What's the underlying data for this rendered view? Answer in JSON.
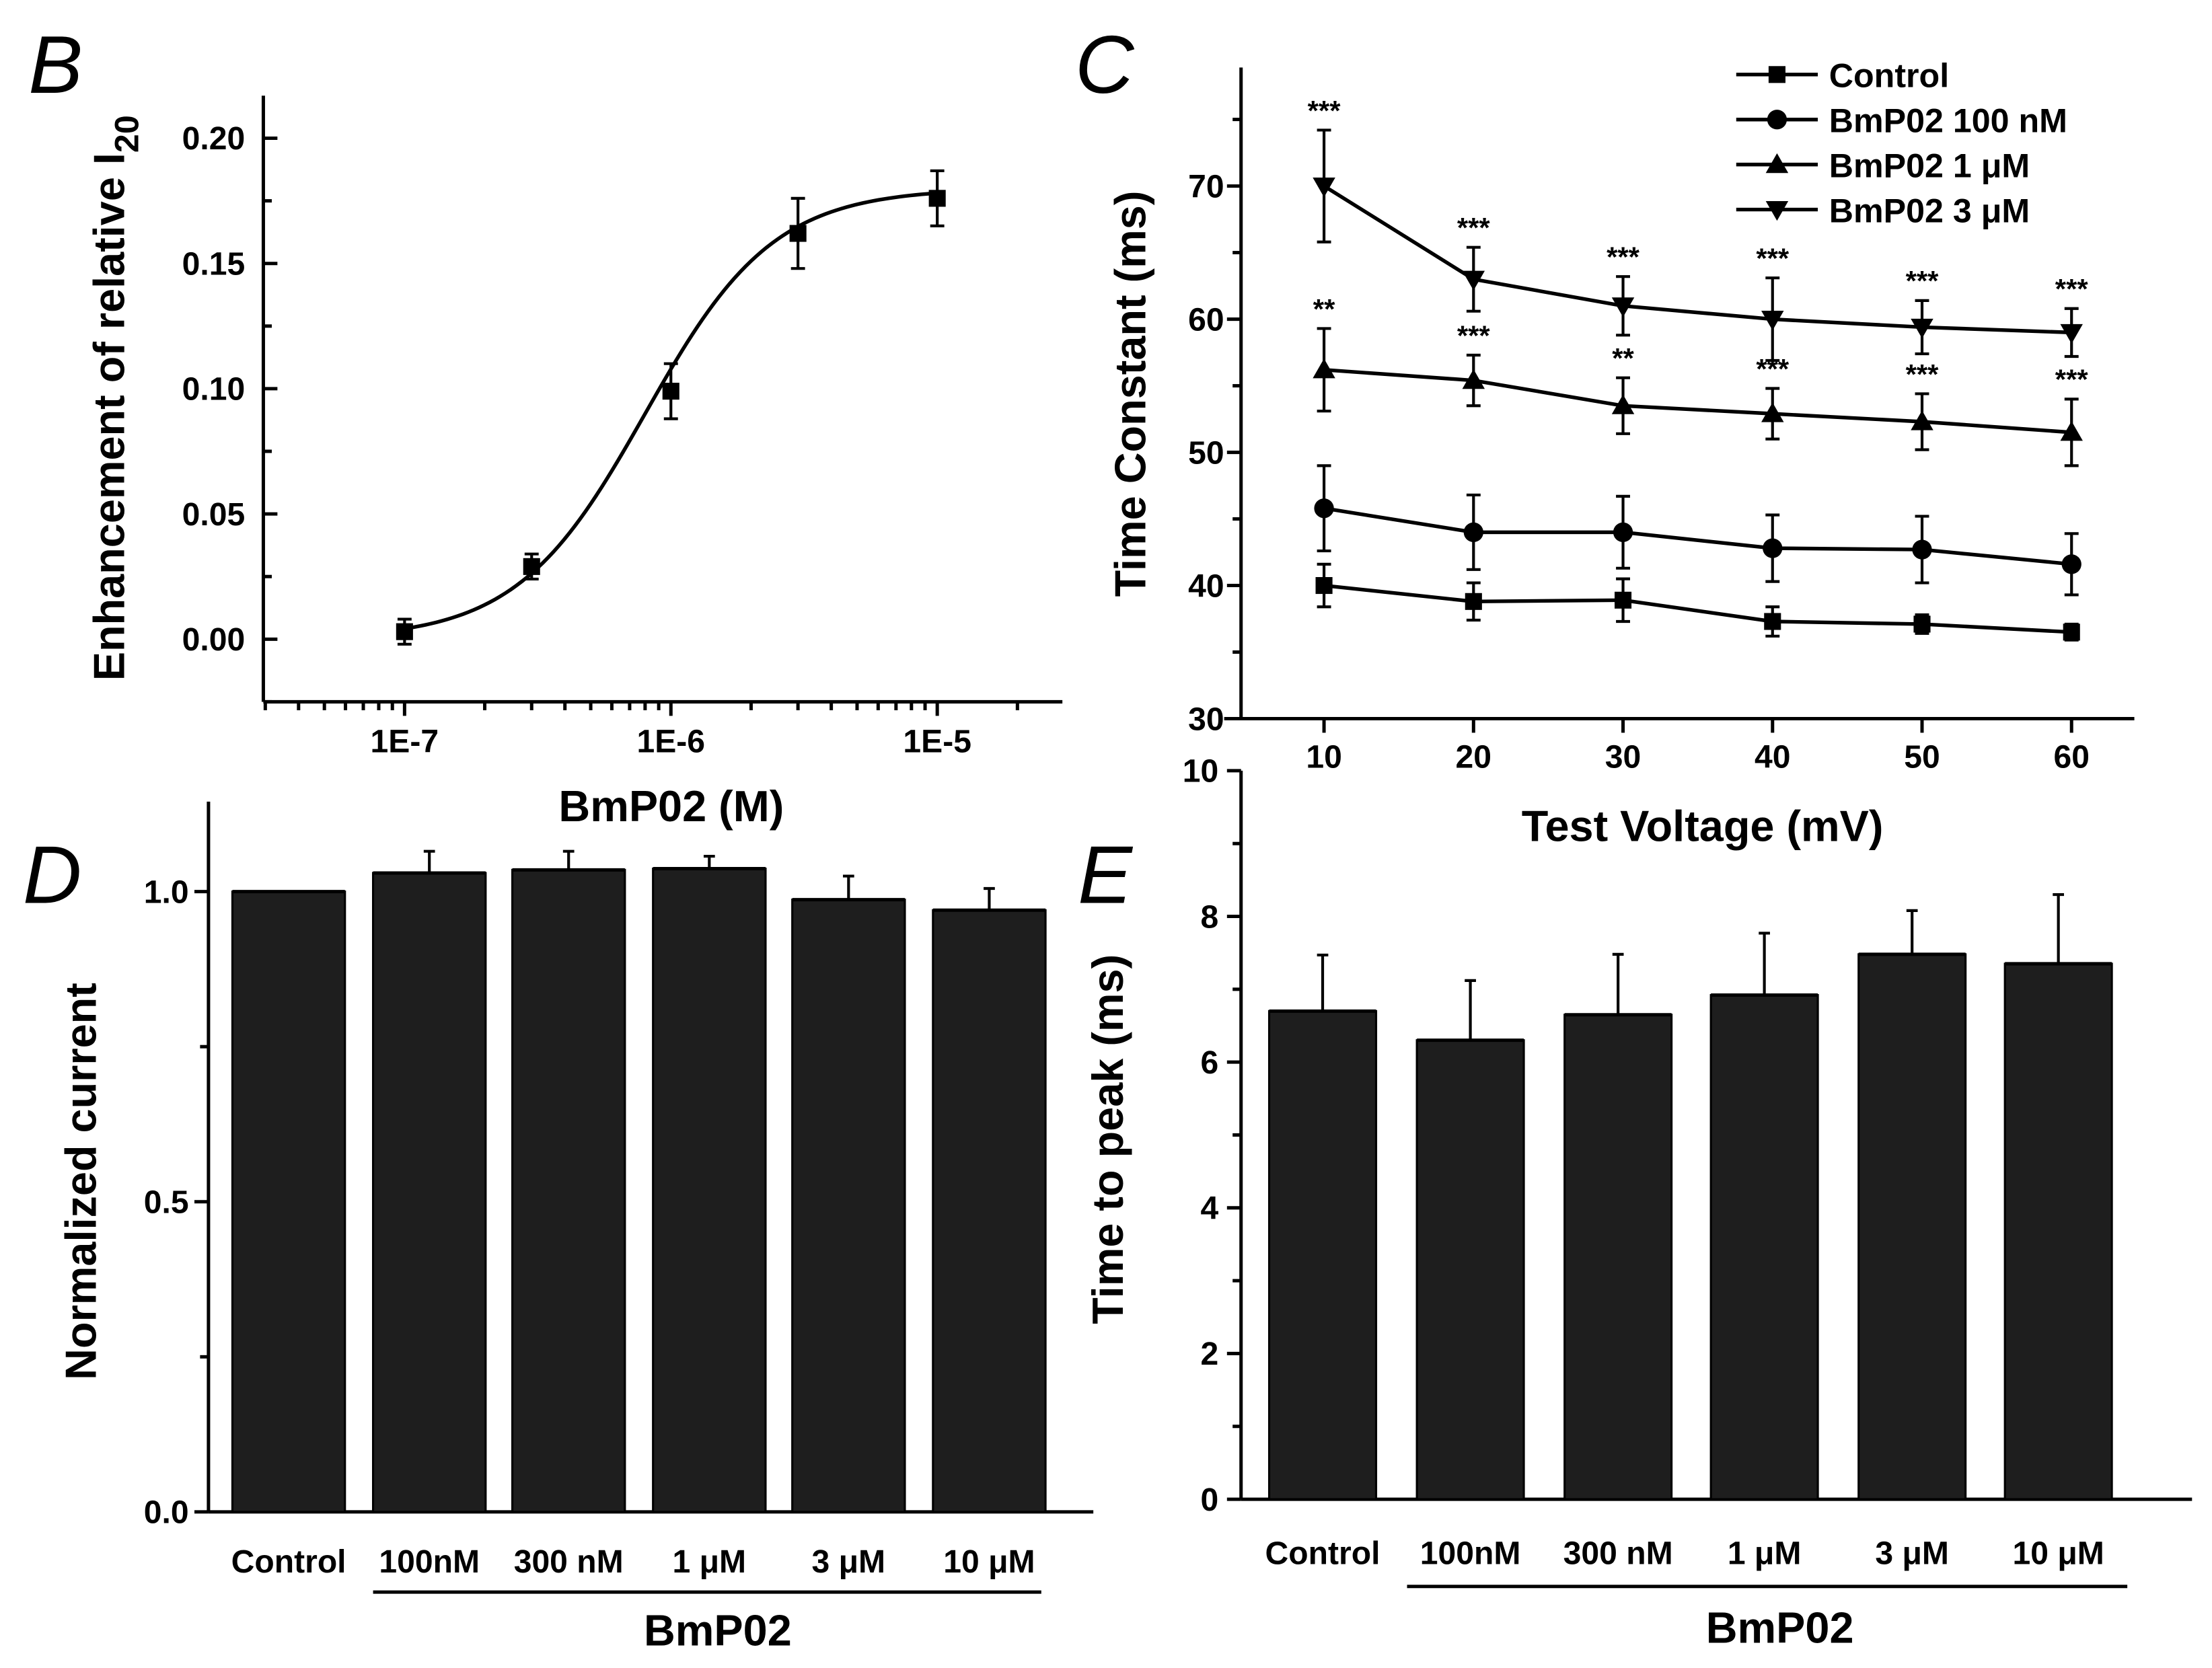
{
  "chart_data": [
    {
      "panel": "B",
      "type": "scatter",
      "title": "",
      "xlabel": "BmP02 (M)",
      "ylabel": "Enhancement of relative I",
      "ylabel_sub": "20",
      "xscale": "log",
      "xlim": [
        2.95e-08,
        2.95e-05
      ],
      "ylim": [
        -0.025,
        0.217
      ],
      "xticks": [
        1e-07,
        1e-06,
        1e-05
      ],
      "xtick_labels": [
        "1E-7",
        "1E-6",
        "1E-5"
      ],
      "yticks": [
        0,
        0.05,
        0.1,
        0.15,
        0.2
      ],
      "ytick_labels": [
        "0.00",
        "0.05",
        "0.10",
        "0.15",
        "0.20"
      ],
      "x": [
        1e-07,
        3e-07,
        1e-06,
        3e-06,
        1e-05
      ],
      "y": [
        0.003,
        0.029,
        0.099,
        0.162,
        0.176
      ],
      "err": [
        0.005,
        0.005,
        0.011,
        0.014,
        0.011
      ],
      "fit": {
        "model": "hill",
        "top": 0.18,
        "ec50": 8e-07,
        "n": 1.8
      }
    },
    {
      "panel": "C",
      "type": "line",
      "xlabel": "Test Voltage (mV)",
      "ylabel": "Time Constant (ms)",
      "xlim": [
        4.45,
        64.2
      ],
      "ylim": [
        30,
        78.9
      ],
      "x": [
        10,
        20,
        30,
        40,
        50,
        60
      ],
      "xtick_labels": [
        "10",
        "20",
        "30",
        "40",
        "50",
        "60"
      ],
      "yticks": [
        30,
        40,
        50,
        60,
        70
      ],
      "ytick_labels": [
        "30",
        "40",
        "50",
        "60",
        "70"
      ],
      "legend": "top-right",
      "series": [
        {
          "name": "Control",
          "marker": "square",
          "values": [
            40.0,
            38.8,
            38.9,
            37.3,
            37.1,
            36.5
          ],
          "err": [
            1.6,
            1.4,
            1.6,
            1.1,
            0.7,
            0.6
          ],
          "annotations": []
        },
        {
          "name": "BmP02 100 nM",
          "marker": "circle",
          "values": [
            45.8,
            44.0,
            44.0,
            42.8,
            42.7,
            41.6
          ],
          "err": [
            3.2,
            2.8,
            2.7,
            2.5,
            2.5,
            2.3
          ],
          "annotations": []
        },
        {
          "name": "BmP02 1 μM",
          "marker": "triangle-up",
          "values": [
            56.2,
            55.4,
            53.5,
            52.9,
            52.3,
            51.5
          ],
          "err": [
            3.1,
            1.9,
            2.1,
            1.9,
            2.1,
            2.5
          ],
          "annotations": [
            "**",
            "***",
            "**",
            "***",
            "***",
            "***"
          ]
        },
        {
          "name": "BmP02 3 μM",
          "marker": "triangle-down",
          "values": [
            70.0,
            63.0,
            61.0,
            60.0,
            59.4,
            59.0
          ],
          "err": [
            4.2,
            2.4,
            2.2,
            3.1,
            2.0,
            1.8
          ],
          "annotations": [
            "***",
            "***",
            "***",
            "***",
            "***",
            "***"
          ]
        }
      ]
    },
    {
      "panel": "D",
      "type": "bar",
      "xlabel": "",
      "ylabel": "Normalized current",
      "group_label": "BmP02",
      "categories": [
        "Control",
        "100nM",
        "300 nM",
        "1 μM",
        "3 μM",
        "10 μM"
      ],
      "values": [
        1.0,
        1.03,
        1.035,
        1.037,
        0.987,
        0.97
      ],
      "err": [
        0,
        0.035,
        0.03,
        0.02,
        0.038,
        0.035
      ],
      "ylim": [
        0,
        1.145
      ],
      "yticks": [
        0,
        0.5,
        1.0
      ],
      "ytick_labels": [
        "0.0",
        "0.5",
        "1.0"
      ]
    },
    {
      "panel": "E",
      "type": "bar",
      "xlabel": "",
      "ylabel": "Time to peak (ms)",
      "group_label": "BmP02",
      "categories": [
        "Control",
        "100nM",
        "300 nM",
        "1 μM",
        "3 μM",
        "10 μM"
      ],
      "values": [
        6.7,
        6.3,
        6.65,
        6.92,
        7.48,
        7.35
      ],
      "err": [
        0.77,
        0.82,
        0.83,
        0.85,
        0.6,
        0.95
      ],
      "ylim": [
        0,
        10
      ],
      "yticks": [
        0,
        2,
        4,
        6,
        8,
        10
      ],
      "ytick_labels": [
        "0",
        "2",
        "4",
        "6",
        "8",
        "10"
      ]
    }
  ],
  "panels": {
    "B": "B",
    "C": "C",
    "D": "D",
    "E": "E"
  }
}
